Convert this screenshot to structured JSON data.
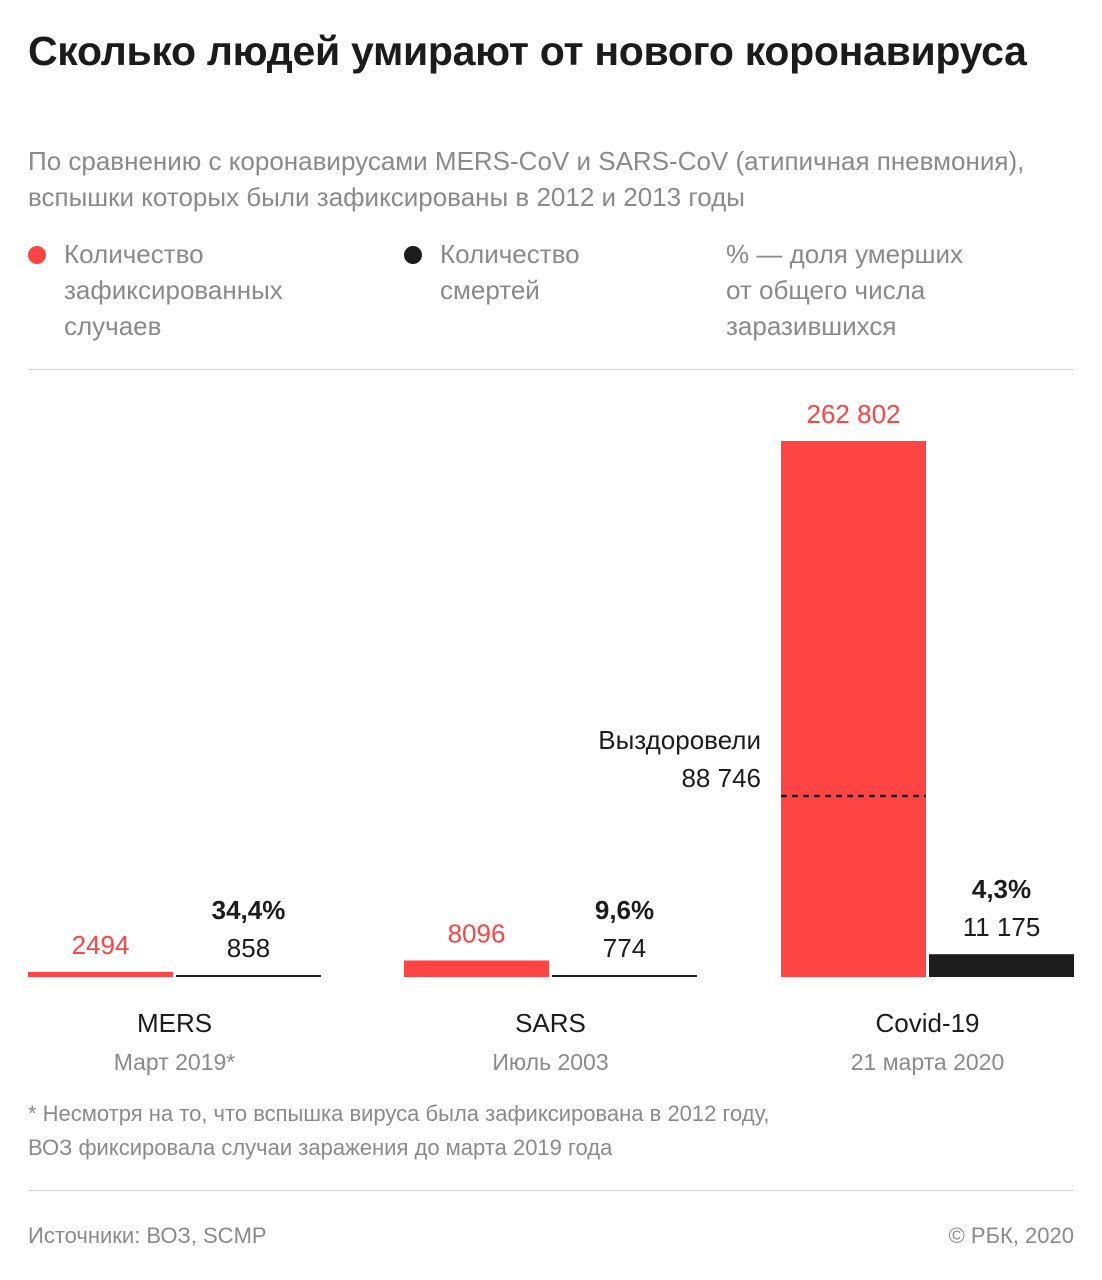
{
  "title": "Сколько людей умирают от нового коронавируса",
  "subtitle": "По сравнению с коронавирусами MERS-CoV и SARS-CoV (атипичная пневмония), вспышки которых были зафиксированы в 2012 и 2013 годы",
  "legend": {
    "cases": {
      "label": "Количество\nзафиксированных\nслучаев",
      "color": "#ff4444"
    },
    "deaths": {
      "label": "Количество\nсмертей",
      "color": "#1c1c1c"
    },
    "percent_note": "% — доля умерших\nот общего числа\nзаразившихся"
  },
  "chart_data": {
    "type": "bar",
    "categories": [
      "MERS",
      "SARS",
      "Covid-19"
    ],
    "category_dates": [
      "Март 2019*",
      "Июль 2003",
      "21 марта 2020"
    ],
    "series": [
      {
        "key": "cases",
        "values": [
          2494,
          8096,
          262802
        ],
        "labels": [
          "2494",
          "8096",
          "262 802"
        ],
        "color": "#ff4444"
      },
      {
        "key": "deaths",
        "values": [
          858,
          774,
          11175
        ],
        "labels": [
          "858",
          "774",
          "11 175"
        ],
        "color": "#1c1c1c"
      }
    ],
    "death_rate_labels": [
      "34,4%",
      "9,6%",
      "4,3%"
    ],
    "annotation": {
      "category": "Covid-19",
      "label": "Выздоровели",
      "value": 88746,
      "value_label": "88 746",
      "style": "dashed"
    },
    "ylim": [
      0,
      262802
    ],
    "grid": false
  },
  "footnote": "* Несмотря на то, что вспышка вируса была зафиксирована в 2012 году,\nВОЗ фиксировала случаи заражения до марта 2019 года",
  "source": "Источники: ВОЗ, SCMP",
  "copyright": "© РБК, 2020"
}
